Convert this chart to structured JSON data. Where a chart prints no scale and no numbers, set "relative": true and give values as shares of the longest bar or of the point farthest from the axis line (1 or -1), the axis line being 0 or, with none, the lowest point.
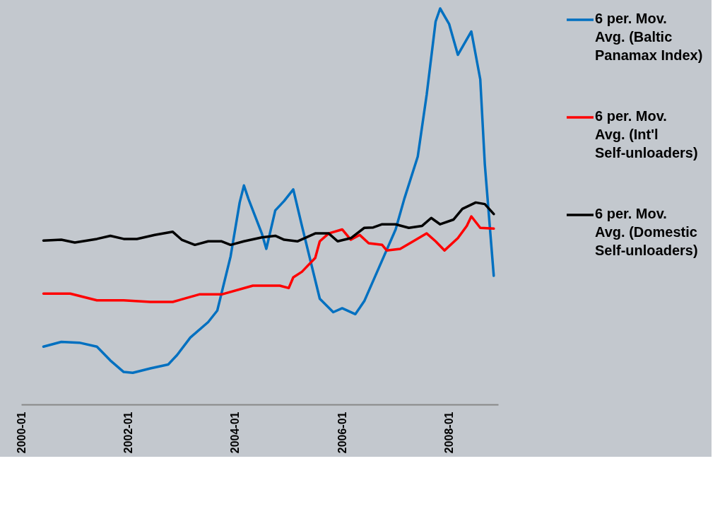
{
  "chart_data": {
    "type": "line",
    "relative": true,
    "legend": "right",
    "xlim": [
      "2000-01",
      "2008-12"
    ],
    "xticks": [
      "2000-01",
      "2002-01",
      "2004-01",
      "2006-01",
      "2008-01"
    ],
    "series": [
      {
        "name": "6 per. Mov. Avg. (Baltic Panamax Index)",
        "color": "#0070c0",
        "x": [
          "2000-06",
          "2000-10",
          "2001-02",
          "2001-06",
          "2001-09",
          "2001-12",
          "2002-02",
          "2002-06",
          "2002-10",
          "2002-12",
          "2003-03",
          "2003-07",
          "2003-09",
          "2003-12",
          "2004-02",
          "2004-03",
          "2004-04",
          "2004-07",
          "2004-08",
          "2004-10",
          "2004-12",
          "2005-02",
          "2005-04",
          "2005-08",
          "2005-11",
          "2006-01",
          "2006-04",
          "2006-06",
          "2006-10",
          "2007-01",
          "2007-03",
          "2007-06",
          "2007-08",
          "2007-10",
          "2007-11",
          "2008-01",
          "2008-03",
          "2008-06",
          "2008-08",
          "2008-09",
          "2008-11"
        ],
        "values": [
          0.146,
          0.158,
          0.156,
          0.146,
          0.111,
          0.082,
          0.08,
          0.091,
          0.101,
          0.125,
          0.169,
          0.208,
          0.237,
          0.374,
          0.51,
          0.553,
          0.519,
          0.432,
          0.393,
          0.49,
          0.514,
          0.543,
          0.451,
          0.267,
          0.233,
          0.243,
          0.228,
          0.261,
          0.364,
          0.442,
          0.519,
          0.626,
          0.782,
          0.967,
          1,
          0.961,
          0.883,
          0.942,
          0.821,
          0.607,
          0.325
        ]
      },
      {
        "name": "6 per. Mov. Avg. (Int'l Self-unloaders)",
        "color": "#ff0000",
        "x": [
          "2000-06",
          "2000-12",
          "2001-06",
          "2001-12",
          "2002-06",
          "2002-11",
          "2003-05",
          "2003-10",
          "2004-05",
          "2004-11",
          "2005-01",
          "2005-02",
          "2005-04",
          "2005-07",
          "2005-08",
          "2005-10",
          "2006-01",
          "2006-03",
          "2006-05",
          "2006-07",
          "2006-10",
          "2006-11",
          "2007-02",
          "2007-05",
          "2007-08",
          "2007-10",
          "2007-12",
          "2008-03",
          "2008-05",
          "2008-06",
          "2008-08",
          "2008-11"
        ],
        "values": [
          0.28,
          0.28,
          0.263,
          0.263,
          0.259,
          0.259,
          0.278,
          0.278,
          0.3,
          0.3,
          0.294,
          0.321,
          0.335,
          0.37,
          0.412,
          0.432,
          0.442,
          0.416,
          0.428,
          0.407,
          0.403,
          0.389,
          0.393,
          0.412,
          0.432,
          0.412,
          0.389,
          0.42,
          0.451,
          0.475,
          0.446,
          0.444
        ]
      },
      {
        "name": "6 per. Mov. Avg. (Domestic Self-unloaders)",
        "color": "#000000",
        "x": [
          "2000-06",
          "2000-10",
          "2001-01",
          "2001-06",
          "2001-09",
          "2001-12",
          "2002-03",
          "2002-07",
          "2002-11",
          "2003-01",
          "2003-04",
          "2003-07",
          "2003-10",
          "2003-12",
          "2004-03",
          "2004-07",
          "2004-10",
          "2004-12",
          "2005-03",
          "2005-07",
          "2005-10",
          "2005-12",
          "2006-03",
          "2006-06",
          "2006-08",
          "2006-10",
          "2007-01",
          "2007-04",
          "2007-07",
          "2007-09",
          "2007-11",
          "2008-02",
          "2008-04",
          "2008-07",
          "2008-09",
          "2008-11"
        ],
        "values": [
          0.414,
          0.416,
          0.409,
          0.418,
          0.426,
          0.418,
          0.418,
          0.428,
          0.436,
          0.416,
          0.403,
          0.412,
          0.412,
          0.403,
          0.412,
          0.422,
          0.426,
          0.416,
          0.412,
          0.432,
          0.432,
          0.412,
          0.42,
          0.446,
          0.447,
          0.455,
          0.455,
          0.446,
          0.451,
          0.471,
          0.455,
          0.467,
          0.494,
          0.51,
          0.506,
          0.481
        ]
      }
    ]
  }
}
